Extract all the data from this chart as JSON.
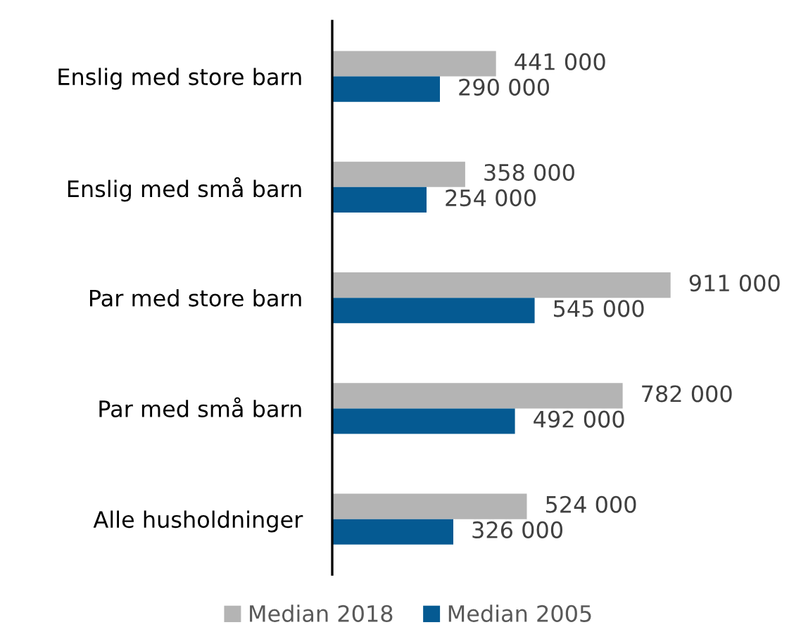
{
  "chart_data": {
    "type": "bar",
    "orientation": "horizontal",
    "categories": [
      "Enslig med store barn",
      "Enslig med små barn",
      "Par med store barn",
      "Par med små barn",
      "Alle husholdninger"
    ],
    "series": [
      {
        "name": "Median 2018",
        "color": "#b4b4b4",
        "values": [
          441000,
          358000,
          911000,
          782000,
          524000
        ]
      },
      {
        "name": "Median 2005",
        "color": "#055a92",
        "values": [
          290000,
          254000,
          545000,
          492000,
          326000
        ]
      }
    ],
    "data_labels": true,
    "legend": "bottom",
    "tick_labels": "y"
  }
}
